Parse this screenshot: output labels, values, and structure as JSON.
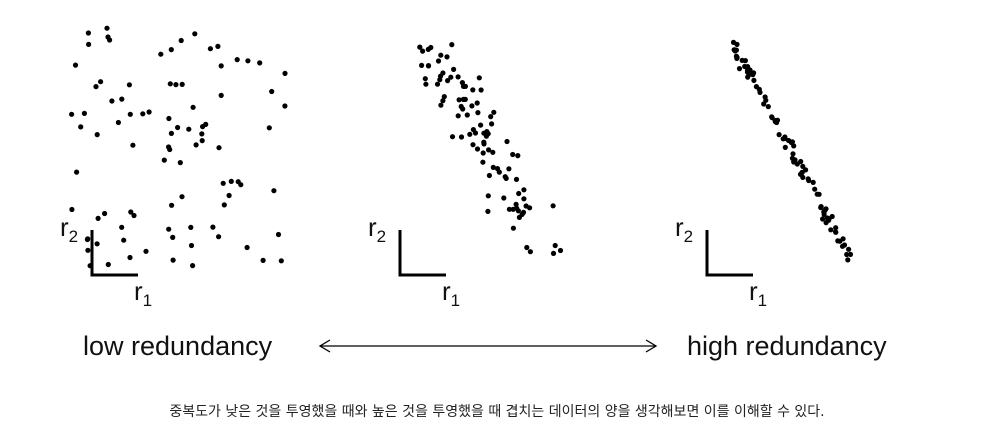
{
  "figure": {
    "axis_y_base": "r",
    "axis_y_sub": "2",
    "axis_x_base": "r",
    "axis_x_sub": "1",
    "low_label": "low redundancy",
    "high_label": "high redundancy"
  },
  "caption": "중복도가 낮은 것을 투영했을 때와 높은 것을 투영했을 때 겹치는 데이터의 양을 생각해보면 이를 이해할 수 있다."
}
